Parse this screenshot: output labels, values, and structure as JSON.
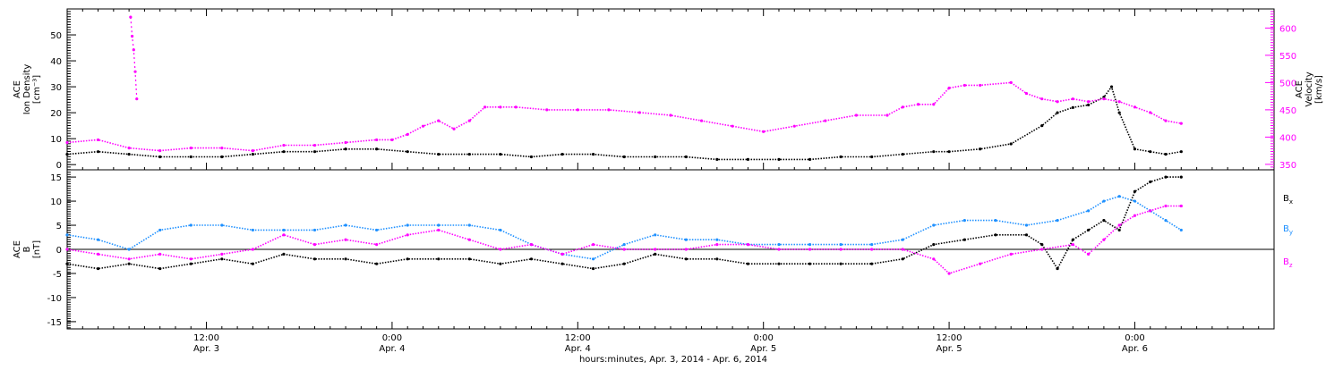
{
  "figure": {
    "xaxis_caption": "hours:minutes, Apr.  3, 2014 - Apr.  6, 2014",
    "colors": {
      "black": "#000000",
      "magenta": "#ff00ff",
      "blue": "#1e90ff"
    }
  },
  "chart_data": [
    {
      "type": "scatter",
      "panel": "top",
      "grid": false,
      "x_unit": "hours since Apr. 3, 2014 00:00",
      "xlim": [
        3,
        81
      ],
      "x_ticks": [
        {
          "x": 12,
          "time": "12:00",
          "date": "Apr. 3"
        },
        {
          "x": 24,
          "time": "0:00",
          "date": "Apr. 4"
        },
        {
          "x": 36,
          "time": "12:00",
          "date": "Apr. 4"
        },
        {
          "x": 48,
          "time": "0:00",
          "date": "Apr. 5"
        },
        {
          "x": 60,
          "time": "12:00",
          "date": "Apr. 5"
        },
        {
          "x": 72,
          "time": "0:00",
          "date": "Apr. 6"
        }
      ],
      "y_left": {
        "label_lines": [
          "ACE",
          "Ion Density",
          "[cm⁻³]"
        ],
        "ylim": [
          -2,
          60
        ],
        "ticks": [
          0,
          10,
          20,
          30,
          40,
          50
        ]
      },
      "y_right": {
        "label_lines": [
          "ACE",
          "Velocity",
          "[km/s]"
        ],
        "ylim": [
          340,
          635
        ],
        "ticks": [
          350,
          400,
          450,
          500,
          550,
          600
        ],
        "color": "#ff00ff"
      },
      "series": [
        {
          "axis": "left",
          "color": "#000000",
          "x": [
            3,
            5,
            7,
            9,
            11,
            13,
            15,
            17,
            19,
            21,
            23,
            25,
            27,
            29,
            31,
            33,
            35,
            37,
            39,
            41,
            43,
            45,
            47,
            49,
            51,
            53,
            55,
            57,
            59,
            60,
            62,
            64,
            66,
            67,
            68,
            69,
            70,
            70.5,
            71,
            72,
            73,
            74,
            75
          ],
          "y": [
            4,
            5,
            4,
            3,
            3,
            3,
            4,
            5,
            5,
            6,
            6,
            5,
            4,
            4,
            4,
            3,
            4,
            4,
            3,
            3,
            3,
            2,
            2,
            2,
            2,
            3,
            3,
            4,
            5,
            5,
            6,
            8,
            15,
            20,
            22,
            23,
            26,
            30,
            20,
            6,
            5,
            4,
            5
          ]
        },
        {
          "axis": "right",
          "color": "#ff00ff",
          "x": [
            3,
            5,
            7,
            9,
            11,
            13,
            15,
            17,
            19,
            21,
            23,
            24,
            25,
            26,
            27,
            28,
            29,
            30,
            31,
            32,
            34,
            36,
            38,
            40,
            42,
            44,
            46,
            48,
            50,
            52,
            54,
            56,
            57,
            58,
            59,
            60,
            61,
            62,
            64,
            65,
            66,
            67,
            68,
            69,
            70,
            71,
            72,
            73,
            74,
            75
          ],
          "y": [
            390,
            395,
            380,
            375,
            380,
            380,
            375,
            385,
            385,
            390,
            395,
            395,
            405,
            420,
            430,
            415,
            430,
            455,
            455,
            455,
            450,
            450,
            450,
            445,
            440,
            430,
            420,
            410,
            420,
            430,
            440,
            440,
            455,
            460,
            460,
            490,
            495,
            495,
            500,
            480,
            470,
            465,
            470,
            465,
            470,
            465,
            455,
            445,
            430,
            425
          ]
        },
        {
          "axis": "right",
          "color": "#ff00ff",
          "x": [
            7.1,
            7.2,
            7.3,
            7.4,
            7.5
          ],
          "y": [
            620,
            585,
            560,
            520,
            470
          ]
        }
      ]
    },
    {
      "type": "line",
      "panel": "bottom",
      "grid": false,
      "xlim": [
        3,
        81
      ],
      "y_left": {
        "label_lines": [
          "ACE",
          "B",
          "[nT]"
        ],
        "ylim": [
          -16.5,
          16.5
        ],
        "ticks": [
          -15,
          -10,
          -5,
          0,
          5,
          10,
          15
        ]
      },
      "zero_line": 0,
      "legend_placement": "right",
      "series": [
        {
          "name": "Bx",
          "color": "#000000",
          "x": [
            3,
            5,
            7,
            9,
            11,
            13,
            15,
            17,
            19,
            21,
            23,
            25,
            27,
            29,
            31,
            33,
            35,
            37,
            39,
            41,
            43,
            45,
            47,
            49,
            51,
            53,
            55,
            57,
            59,
            61,
            63,
            65,
            66,
            67,
            68,
            69,
            70,
            71,
            72,
            73,
            74,
            75
          ],
          "y": [
            -3,
            -4,
            -3,
            -4,
            -3,
            -2,
            -3,
            -1,
            -2,
            -2,
            -3,
            -2,
            -2,
            -2,
            -3,
            -2,
            -3,
            -4,
            -3,
            -1,
            -2,
            -2,
            -3,
            -3,
            -3,
            -3,
            -3,
            -2,
            1,
            2,
            3,
            3,
            1,
            -4,
            2,
            4,
            6,
            4,
            12,
            14,
            15,
            15
          ]
        },
        {
          "name": "By",
          "color": "#1e90ff",
          "x": [
            3,
            5,
            7,
            9,
            11,
            13,
            15,
            17,
            19,
            21,
            23,
            25,
            27,
            29,
            31,
            33,
            35,
            37,
            39,
            41,
            43,
            45,
            47,
            49,
            51,
            53,
            55,
            57,
            59,
            61,
            63,
            65,
            67,
            69,
            70,
            71,
            72,
            73,
            74,
            75
          ],
          "y": [
            3,
            2,
            0,
            4,
            5,
            5,
            4,
            4,
            4,
            5,
            4,
            5,
            5,
            5,
            4,
            1,
            -1,
            -2,
            1,
            3,
            2,
            2,
            1,
            1,
            1,
            1,
            1,
            2,
            5,
            6,
            6,
            5,
            6,
            8,
            10,
            11,
            10,
            8,
            6,
            4
          ]
        },
        {
          "name": "Bz",
          "color": "#ff00ff",
          "x": [
            3,
            5,
            7,
            9,
            11,
            13,
            15,
            17,
            19,
            21,
            23,
            25,
            27,
            29,
            31,
            33,
            35,
            37,
            39,
            41,
            43,
            45,
            47,
            49,
            51,
            53,
            55,
            57,
            59,
            60,
            62,
            64,
            66,
            68,
            69,
            70,
            71,
            72,
            73,
            74,
            75
          ],
          "y": [
            0,
            -1,
            -2,
            -1,
            -2,
            -1,
            0,
            3,
            1,
            2,
            1,
            3,
            4,
            2,
            0,
            1,
            -1,
            1,
            0,
            0,
            0,
            1,
            1,
            0,
            0,
            0,
            0,
            0,
            -2,
            -5,
            -3,
            -1,
            0,
            1,
            -1,
            2,
            5,
            7,
            8,
            9,
            9
          ]
        }
      ],
      "legend": [
        {
          "base": "B",
          "sub": "x",
          "color": "#000000"
        },
        {
          "base": "B",
          "sub": "y",
          "color": "#1e90ff"
        },
        {
          "base": "B",
          "sub": "z",
          "color": "#ff00ff"
        }
      ]
    }
  ]
}
